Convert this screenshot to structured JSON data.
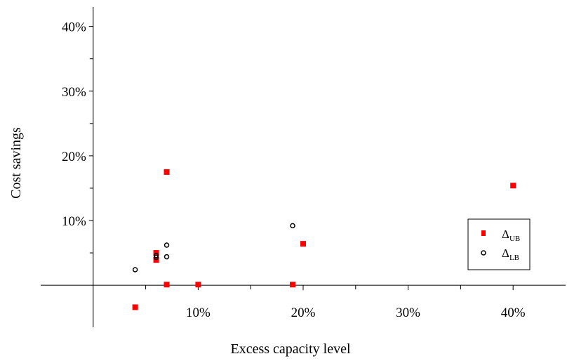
{
  "chart_data": {
    "type": "scatter",
    "title": "",
    "xlabel": "Excess capacity level",
    "ylabel": "Cost savings",
    "xlim": [
      -0.05,
      0.45
    ],
    "ylim": [
      -0.065,
      0.43
    ],
    "x_ticks": [
      0.1,
      0.2,
      0.3,
      0.4
    ],
    "x_tick_labels": [
      "10%",
      "20%",
      "30%",
      "40%"
    ],
    "x_minor_ticks": [
      0.05,
      0.15,
      0.25,
      0.35
    ],
    "y_ticks": [
      0.1,
      0.2,
      0.3,
      0.4
    ],
    "y_tick_labels": [
      "10%",
      "20%",
      "30%",
      "40%"
    ],
    "y_minor_ticks": [
      0.05,
      0.15,
      0.25,
      0.35
    ],
    "grid": false,
    "legend_position": "right",
    "series": [
      {
        "name": "ΔUB",
        "name_main": "Δ",
        "name_sub": "UB",
        "marker": "filled-square",
        "color": "#ff0000",
        "x": [
          0.04,
          0.06,
          0.06,
          0.07,
          0.07,
          0.1,
          0.19,
          0.2,
          0.4
        ],
        "y": [
          -0.034,
          0.039,
          0.05,
          0.175,
          0.001,
          0.001,
          0.001,
          0.064,
          0.154
        ]
      },
      {
        "name": "ΔLB",
        "name_main": "Δ",
        "name_sub": "LB",
        "marker": "open-circle",
        "color": "#000000",
        "x": [
          0.04,
          0.06,
          0.06,
          0.07,
          0.07,
          0.19
        ],
        "y": [
          0.024,
          0.043,
          0.046,
          0.062,
          0.044,
          0.092
        ]
      }
    ]
  }
}
